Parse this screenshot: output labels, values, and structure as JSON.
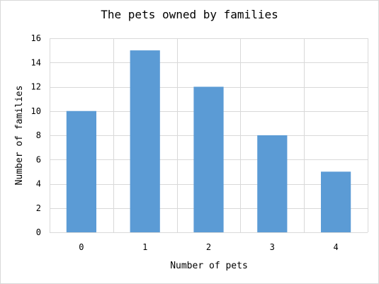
{
  "chart_data": {
    "type": "bar",
    "title": "The pets owned by families",
    "xlabel": "Number of pets",
    "ylabel": "Number of families",
    "categories": [
      "0",
      "1",
      "2",
      "3",
      "4"
    ],
    "values": [
      10,
      15,
      12,
      8,
      5
    ],
    "ylim": [
      0,
      16
    ],
    "yticks": [
      0,
      2,
      4,
      6,
      8,
      10,
      12,
      14,
      16
    ],
    "ytick_labels": [
      "0",
      "2",
      "4",
      "6",
      "8",
      "10",
      "12",
      "14",
      "16"
    ],
    "grid": true,
    "legend": "none",
    "bar_color": "#5b9bd5",
    "grid_color": "#d9d9d9"
  }
}
